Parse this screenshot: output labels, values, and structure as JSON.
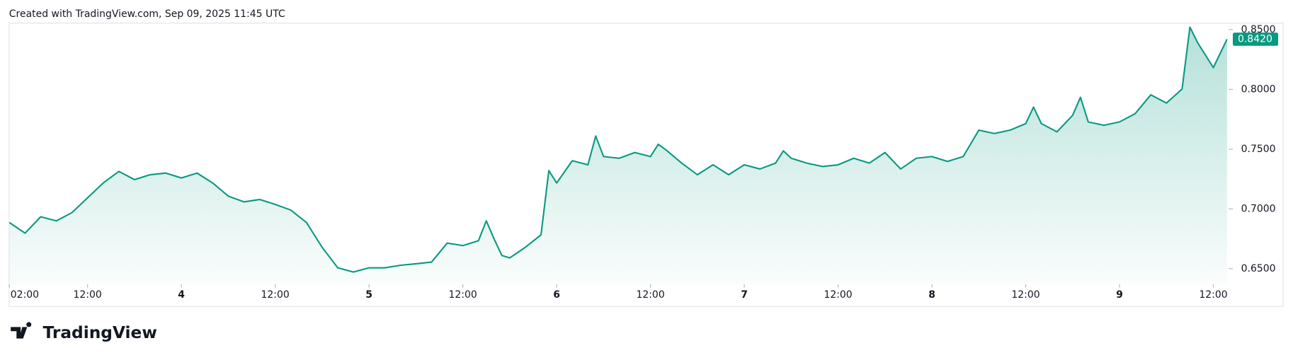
{
  "header": {
    "text": "Created with TradingView.com, Sep 09, 2025 11:45 UTC"
  },
  "footer": {
    "logo": "TradingView"
  },
  "chart_data": {
    "type": "area",
    "color": "#089981",
    "x": [
      2,
      4,
      6,
      8,
      10,
      12,
      14,
      16,
      18,
      20,
      22,
      24,
      26,
      28,
      30,
      32,
      34,
      36,
      38,
      40,
      42,
      44,
      46,
      48,
      50,
      52,
      54,
      56,
      58,
      60,
      62,
      63,
      64,
      65,
      66,
      68,
      70,
      71,
      72,
      74,
      76,
      77,
      78,
      80,
      82,
      84,
      85,
      86,
      88,
      90,
      92,
      94,
      96,
      98,
      100,
      101,
      102,
      104,
      106,
      108,
      110,
      112,
      114,
      116,
      118,
      120,
      122,
      124,
      126,
      128,
      130,
      132,
      133,
      134,
      136,
      138,
      139,
      140,
      142,
      144,
      146,
      148,
      150,
      152,
      153,
      154,
      156,
      157.75
    ],
    "values": [
      0.6886,
      0.6797,
      0.6934,
      0.69,
      0.6969,
      0.7093,
      0.7217,
      0.7314,
      0.7245,
      0.7286,
      0.73,
      0.7259,
      0.73,
      0.7217,
      0.7107,
      0.7059,
      0.7079,
      0.7038,
      0.699,
      0.6886,
      0.6679,
      0.6507,
      0.6472,
      0.6507,
      0.6507,
      0.6528,
      0.6541,
      0.6555,
      0.6714,
      0.6693,
      0.6734,
      0.69,
      0.6748,
      0.661,
      0.659,
      0.6679,
      0.6783,
      0.7321,
      0.7217,
      0.7403,
      0.7369,
      0.761,
      0.7438,
      0.7424,
      0.7472,
      0.7438,
      0.7541,
      0.7493,
      0.7383,
      0.7286,
      0.7369,
      0.7286,
      0.7369,
      0.7334,
      0.7383,
      0.7486,
      0.7424,
      0.7383,
      0.7355,
      0.7369,
      0.7424,
      0.7383,
      0.7472,
      0.7334,
      0.7424,
      0.7438,
      0.7397,
      0.7438,
      0.7659,
      0.7631,
      0.7659,
      0.7714,
      0.7852,
      0.7714,
      0.7645,
      0.7783,
      0.7934,
      0.7728,
      0.77,
      0.7728,
      0.7797,
      0.7955,
      0.7886,
      0.8003,
      0.8521,
      0.839,
      0.8183,
      0.842
    ],
    "xlim": [
      2,
      157.75
    ],
    "ylim": [
      0.637,
      0.8555
    ],
    "xticks": [
      {
        "value": 2,
        "label": "02:00"
      },
      {
        "value": 12,
        "label": "12:00"
      },
      {
        "value": 24,
        "label": "4"
      },
      {
        "value": 36,
        "label": "12:00"
      },
      {
        "value": 48,
        "label": "5"
      },
      {
        "value": 60,
        "label": "12:00"
      },
      {
        "value": 72,
        "label": "6"
      },
      {
        "value": 84,
        "label": "12:00"
      },
      {
        "value": 96,
        "label": "7"
      },
      {
        "value": 108,
        "label": "12:00"
      },
      {
        "value": 120,
        "label": "8"
      },
      {
        "value": 132,
        "label": "12:00"
      },
      {
        "value": 144,
        "label": "9"
      },
      {
        "value": 156,
        "label": "12:00"
      }
    ],
    "yticks": [
      {
        "value": 0.65,
        "label": "0.6500"
      },
      {
        "value": 0.7,
        "label": "0.7000"
      },
      {
        "value": 0.75,
        "label": "0.7500"
      },
      {
        "value": 0.8,
        "label": "0.8000"
      },
      {
        "value": 0.85,
        "label": "0.8500"
      }
    ],
    "last_price": {
      "value": 0.842,
      "label": "0.8420"
    }
  }
}
